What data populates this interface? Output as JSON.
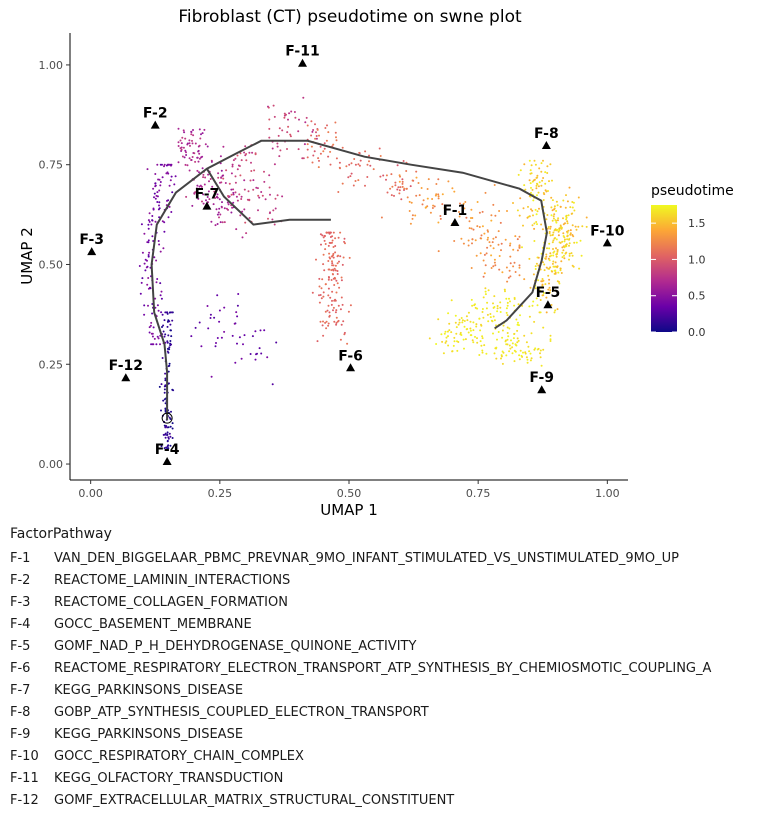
{
  "chart_data": {
    "type": "scatter",
    "title": "Fibroblast (CT) pseudotime on swne plot",
    "xlabel": "UMAP 1",
    "ylabel": "UMAP 2",
    "xlim": [
      -0.04,
      1.04
    ],
    "ylim": [
      -0.04,
      1.08
    ],
    "x_ticks": [
      0.0,
      0.25,
      0.5,
      0.75,
      1.0
    ],
    "x_tick_labels": [
      "0.00",
      "0.25",
      "0.50",
      "0.75",
      "1.00"
    ],
    "y_ticks": [
      0.0,
      0.25,
      0.5,
      0.75,
      1.0
    ],
    "y_tick_labels": [
      "0.00",
      "0.25",
      "0.50",
      "0.75",
      "1.00"
    ],
    "grid": false,
    "legend": {
      "title": "pseudotime",
      "position": "right",
      "range": [
        0,
        1.75
      ],
      "ticks": [
        0.0,
        0.5,
        1.0,
        1.5
      ],
      "tick_labels": [
        "0.0",
        "0.5",
        "1.0",
        "1.5"
      ],
      "colors": [
        "#0d0887",
        "#6a00a8",
        "#b12a90",
        "#e16462",
        "#fca636",
        "#f0f921"
      ]
    },
    "factors": [
      {
        "label": "F-1",
        "x": 0.705,
        "y": 0.604
      },
      {
        "label": "F-2",
        "x": 0.125,
        "y": 0.848
      },
      {
        "label": "F-3",
        "x": 0.002,
        "y": 0.531
      },
      {
        "label": "F-4",
        "x": 0.148,
        "y": 0.005
      },
      {
        "label": "F-5",
        "x": 0.885,
        "y": 0.398
      },
      {
        "label": "F-6",
        "x": 0.503,
        "y": 0.24
      },
      {
        "label": "F-7",
        "x": 0.225,
        "y": 0.645
      },
      {
        "label": "F-8",
        "x": 0.882,
        "y": 0.797
      },
      {
        "label": "F-9",
        "x": 0.873,
        "y": 0.185
      },
      {
        "label": "F-10",
        "x": 1.0,
        "y": 0.553
      },
      {
        "label": "F-11",
        "x": 0.41,
        "y": 1.003
      },
      {
        "label": "F-12",
        "x": 0.068,
        "y": 0.215
      }
    ],
    "trajectory": [
      [
        0.148,
        0.11
      ],
      [
        0.148,
        0.23
      ],
      [
        0.143,
        0.3
      ],
      [
        0.123,
        0.38
      ],
      [
        0.118,
        0.5
      ],
      [
        0.128,
        0.6
      ],
      [
        0.165,
        0.68
      ],
      [
        0.225,
        0.74
      ],
      [
        0.283,
        0.779
      ],
      [
        0.33,
        0.81
      ],
      [
        0.42,
        0.81
      ],
      [
        0.53,
        0.77
      ],
      [
        0.62,
        0.75
      ],
      [
        0.72,
        0.73
      ],
      [
        0.83,
        0.69
      ],
      [
        0.872,
        0.66
      ],
      [
        0.883,
        0.58
      ],
      [
        0.873,
        0.51
      ],
      [
        0.855,
        0.43
      ],
      [
        0.805,
        0.36
      ],
      [
        0.782,
        0.34
      ]
    ],
    "trajectory_branch": [
      [
        0.225,
        0.74
      ],
      [
        0.258,
        0.67
      ],
      [
        0.315,
        0.6
      ],
      [
        0.385,
        0.612
      ],
      [
        0.465,
        0.612
      ]
    ],
    "root": {
      "x": 0.148,
      "y": 0.115
    },
    "clusters": [
      {
        "n": 110,
        "x": [
          0.13,
          0.175
        ],
        "y": [
          0.04,
          0.38
        ],
        "t": [
          0.0,
          0.22
        ],
        "pts": [
          [
            0.148,
            0.08
          ],
          [
            0.147,
            0.2
          ],
          [
            0.15,
            0.33
          ]
        ]
      },
      {
        "n": 150,
        "x": [
          0.095,
          0.18
        ],
        "y": [
          0.3,
          0.75
        ],
        "t": [
          0.28,
          0.55
        ],
        "pts": [
          [
            0.125,
            0.35
          ],
          [
            0.115,
            0.5
          ],
          [
            0.13,
            0.63
          ],
          [
            0.15,
            0.72
          ]
        ]
      },
      {
        "n": 160,
        "x": [
          0.17,
          0.31
        ],
        "y": [
          0.55,
          0.84
        ],
        "t": [
          0.55,
          0.82
        ],
        "pts": [
          [
            0.19,
            0.79
          ],
          [
            0.22,
            0.7
          ],
          [
            0.26,
            0.65
          ]
        ]
      },
      {
        "n": 120,
        "x": [
          0.25,
          0.44
        ],
        "y": [
          0.57,
          0.92
        ],
        "t": [
          0.7,
          0.98
        ],
        "pts": [
          [
            0.3,
            0.75
          ],
          [
            0.38,
            0.84
          ],
          [
            0.33,
            0.65
          ]
        ]
      },
      {
        "n": 110,
        "x": [
          0.42,
          0.63
        ],
        "y": [
          0.6,
          0.88
        ],
        "t": [
          0.95,
          1.2
        ],
        "pts": [
          [
            0.45,
            0.8
          ],
          [
            0.52,
            0.74
          ],
          [
            0.6,
            0.7
          ]
        ]
      },
      {
        "n": 150,
        "x": [
          0.4,
          0.52
        ],
        "y": [
          0.3,
          0.58
        ],
        "t": [
          1.0,
          1.15
        ],
        "pts": [
          [
            0.46,
            0.47
          ],
          [
            0.47,
            0.38
          ],
          [
            0.47,
            0.55
          ]
        ]
      },
      {
        "n": 150,
        "x": [
          0.58,
          0.83
        ],
        "y": [
          0.45,
          0.75
        ],
        "t": [
          1.15,
          1.45
        ],
        "pts": [
          [
            0.66,
            0.66
          ],
          [
            0.75,
            0.6
          ],
          [
            0.8,
            0.52
          ]
        ]
      },
      {
        "n": 330,
        "x": [
          0.81,
          0.96
        ],
        "y": [
          0.38,
          0.76
        ],
        "t": [
          1.4,
          1.75
        ],
        "pts": [
          [
            0.9,
            0.56
          ],
          [
            0.86,
            0.68
          ],
          [
            0.88,
            0.47
          ],
          [
            0.92,
            0.6
          ]
        ]
      },
      {
        "n": 220,
        "x": [
          0.63,
          0.89
        ],
        "y": [
          0.22,
          0.47
        ],
        "t": [
          1.6,
          1.75
        ],
        "pts": [
          [
            0.78,
            0.38
          ],
          [
            0.82,
            0.3
          ],
          [
            0.72,
            0.33
          ]
        ]
      },
      {
        "n": 45,
        "x": [
          0.18,
          0.41
        ],
        "y": [
          0.2,
          0.52
        ],
        "t": [
          0.25,
          0.45
        ],
        "pts": [
          [
            0.25,
            0.36
          ],
          [
            0.3,
            0.28
          ]
        ]
      }
    ]
  },
  "factor_pathway": {
    "title": "FactorPathway",
    "rows": [
      {
        "id": "F-1",
        "name": "VAN_DEN_BIGGELAAR_PBMC_PREVNAR_9MO_INFANT_STIMULATED_VS_UNSTIMULATED_9MO_UP"
      },
      {
        "id": "F-2",
        "name": "REACTOME_LAMININ_INTERACTIONS"
      },
      {
        "id": "F-3",
        "name": "REACTOME_COLLAGEN_FORMATION"
      },
      {
        "id": "F-4",
        "name": "GOCC_BASEMENT_MEMBRANE"
      },
      {
        "id": "F-5",
        "name": "GOMF_NAD_P_H_DEHYDROGENASE_QUINONE_ACTIVITY"
      },
      {
        "id": "F-6",
        "name": "REACTOME_RESPIRATORY_ELECTRON_TRANSPORT_ATP_SYNTHESIS_BY_CHEMIOSMOTIC_COUPLING_A"
      },
      {
        "id": "F-7",
        "name": "KEGG_PARKINSONS_DISEASE"
      },
      {
        "id": "F-8",
        "name": "GOBP_ATP_SYNTHESIS_COUPLED_ELECTRON_TRANSPORT"
      },
      {
        "id": "F-9",
        "name": "KEGG_PARKINSONS_DISEASE"
      },
      {
        "id": "F-10",
        "name": "GOCC_RESPIRATORY_CHAIN_COMPLEX"
      },
      {
        "id": "F-11",
        "name": "KEGG_OLFACTORY_TRANSDUCTION"
      },
      {
        "id": "F-12",
        "name": "GOMF_EXTRACELLULAR_MATRIX_STRUCTURAL_CONSTITUENT"
      }
    ]
  }
}
